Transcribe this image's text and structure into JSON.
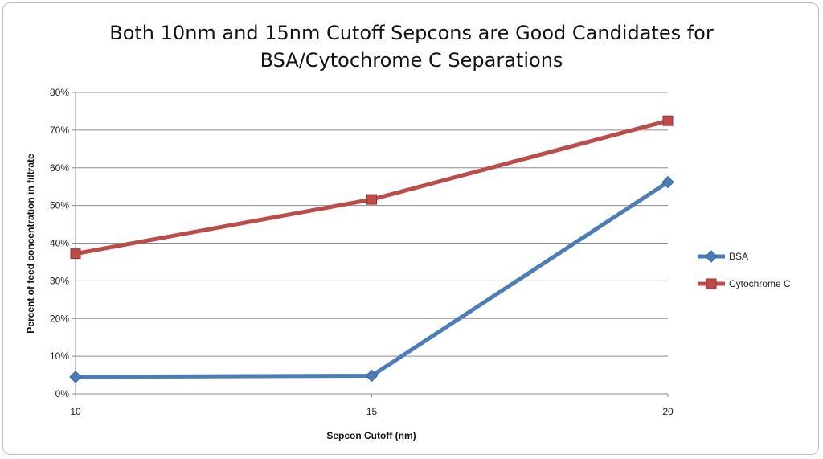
{
  "chart_data": {
    "type": "line",
    "title_lines": [
      "Both 10nm and 15nm Cutoff Sepcons are Good Candidates for",
      "BSA/Cytochrome C Separations"
    ],
    "xlabel": "Sepcon Cutoff (nm)",
    "ylabel": "Percent of feed concentration in filtrate",
    "categories": [
      "10",
      "15",
      "20"
    ],
    "ylim": [
      0,
      80
    ],
    "yticks": [
      "0%",
      "10%",
      "20%",
      "30%",
      "40%",
      "50%",
      "60%",
      "70%",
      "80%"
    ],
    "grid": true,
    "legend_position": "right",
    "series": [
      {
        "name": "BSA",
        "values": [
          4.5,
          4.8,
          56.2
        ],
        "color": "#4a7ebb",
        "marker": "diamond"
      },
      {
        "name": "Cytochrome C",
        "values": [
          37.2,
          51.6,
          72.5
        ],
        "color": "#be4b48",
        "marker": "square"
      }
    ]
  }
}
